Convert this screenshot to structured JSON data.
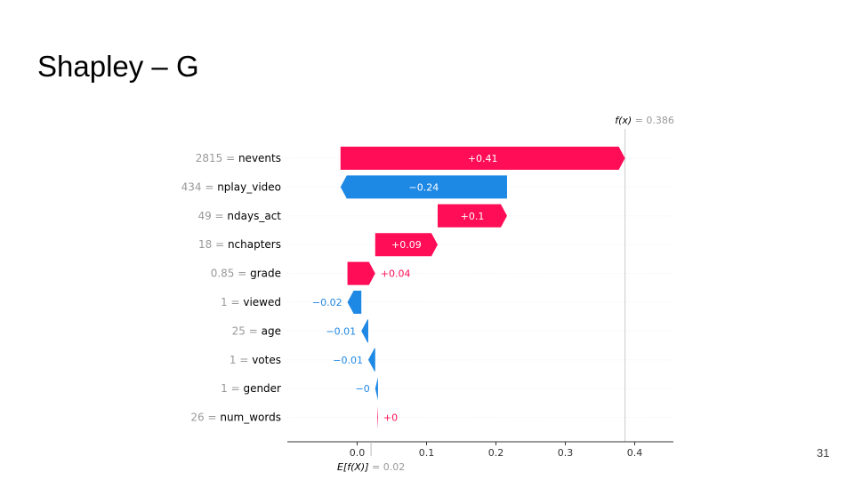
{
  "slide": {
    "title": "Shapley – G",
    "page_number": "31"
  },
  "chart_data": {
    "type": "waterfall",
    "base_value": 0.02,
    "output_value": 0.386,
    "base_label_prefix": "E[f(X)]",
    "base_label_value": " = 0.02",
    "output_label_prefix": "f(x)",
    "output_label_value": " = 0.386",
    "features": [
      {
        "value": "2815",
        "name": "nevents",
        "contribution": 0.41,
        "label": "+0.41"
      },
      {
        "value": "434",
        "name": "nplay_video",
        "contribution": -0.24,
        "label": "−0.24"
      },
      {
        "value": "49",
        "name": "ndays_act",
        "contribution": 0.1,
        "label": "+0.1"
      },
      {
        "value": "18",
        "name": "nchapters",
        "contribution": 0.09,
        "label": "+0.09"
      },
      {
        "value": "0.85",
        "name": "grade",
        "contribution": 0.04,
        "label": "+0.04"
      },
      {
        "value": "1",
        "name": "viewed",
        "contribution": -0.02,
        "label": "−0.02"
      },
      {
        "value": "25",
        "name": "age",
        "contribution": -0.01,
        "label": "−0.01"
      },
      {
        "value": "1",
        "name": "votes",
        "contribution": -0.01,
        "label": "−0.01"
      },
      {
        "value": "1",
        "name": "gender",
        "contribution": -0.004,
        "label": "−0"
      },
      {
        "value": "26",
        "name": "num_words",
        "contribution": 0.001,
        "label": "+0"
      }
    ],
    "x_ticks": [
      {
        "value": 0.0,
        "label": "0.0"
      },
      {
        "value": 0.1,
        "label": "0.1"
      },
      {
        "value": 0.2,
        "label": "0.2"
      },
      {
        "value": 0.3,
        "label": "0.3"
      },
      {
        "value": 0.4,
        "label": "0.4"
      }
    ],
    "xlim": [
      -0.1,
      0.455
    ],
    "colors": {
      "positive": "#ff0d57",
      "negative": "#1e88e5",
      "grid": "#eeeeee",
      "axis": "#333333",
      "muted": "#999999"
    }
  }
}
